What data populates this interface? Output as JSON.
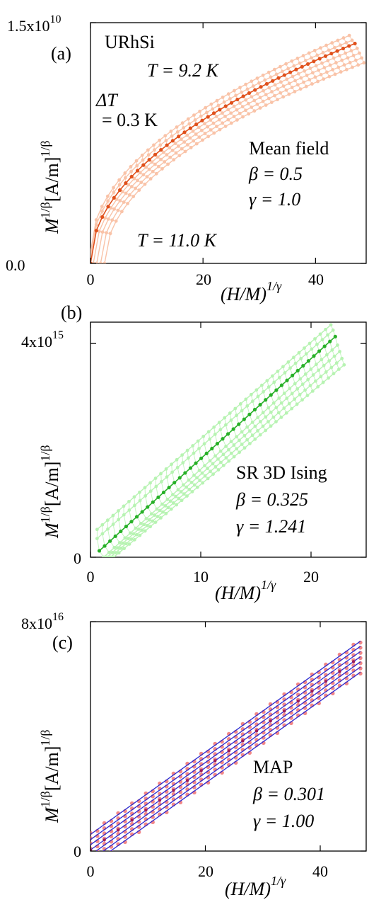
{
  "colors": {
    "panel_a_light": "#f9c3a8",
    "panel_a_dark": "#e0501b",
    "panel_b_light": "#b7f3b2",
    "panel_b_dark": "#27b027",
    "panel_c_line": "#2a2ad0",
    "panel_c_data": "#f07a7a",
    "panel_c_dark": "#9a1a5a"
  },
  "chart_data": [
    {
      "panel": "(a)",
      "type": "line",
      "ylabel": {
        "base": "M",
        "sup": "1/β",
        "unit": "[A/m]",
        "unit_sup": "1/β"
      },
      "xlabel": {
        "base": "(H/M)",
        "sup": "1/γ"
      },
      "xlim": [
        0,
        49
      ],
      "ylim": [
        0,
        15000000000.0
      ],
      "x_ticks": [
        "0",
        "20",
        "40"
      ],
      "x_tick_values": [
        0,
        20,
        40
      ],
      "y_ticks": [
        "0.0",
        "1.5x10"
      ],
      "y_ticks_sup": [
        "",
        "10"
      ],
      "y_tick_values": [
        0,
        15000000000.0
      ],
      "annotations": [
        {
          "text": "URhSi"
        },
        {
          "text": "T = 9.2 K"
        },
        {
          "text": "ΔT"
        },
        {
          "text": "= 0.3 K"
        },
        {
          "text": "Mean field"
        },
        {
          "text": "β = 0.5"
        },
        {
          "text": "γ = 1.0"
        },
        {
          "text": "T = 11.0 K"
        }
      ],
      "model": "sqrt",
      "temperatures_K": [
        9.2,
        9.5,
        9.8,
        10.1,
        10.4,
        10.7,
        11.0
      ],
      "highlight_T_K": 9.8,
      "n_points": 46,
      "series": [
        {
          "T": 9.2,
          "x_range": [
            0,
            46.0
          ],
          "y_range": [
            700000000.0,
            14200000000.0
          ]
        },
        {
          "T": 9.5,
          "x_range": [
            0,
            46.5
          ],
          "y_range": [
            400000000.0,
            13900000000.0
          ]
        },
        {
          "T": 9.8,
          "x_range": [
            0,
            47.0
          ],
          "y_range": [
            0.0,
            13700000000.0
          ]
        },
        {
          "T": 10.1,
          "x_range": [
            0.5,
            47.4
          ],
          "y_range": [
            0.0,
            13400000000.0
          ]
        },
        {
          "T": 10.4,
          "x_range": [
            1.1,
            47.8
          ],
          "y_range": [
            0.0,
            13100000000.0
          ]
        },
        {
          "T": 10.7,
          "x_range": [
            1.8,
            48.2
          ],
          "y_range": [
            0.0,
            12800000000.0
          ]
        },
        {
          "T": 11.0,
          "x_range": [
            2.5,
            48.6
          ],
          "y_range": [
            0.0,
            12500000000.0
          ]
        }
      ]
    },
    {
      "panel": "(b)",
      "type": "line",
      "ylabel": {
        "base": "M",
        "sup": "1/β",
        "unit": "[A/m]",
        "unit_sup": "1/β"
      },
      "xlabel": {
        "base": "(H/M)",
        "sup": "1/γ"
      },
      "xlim": [
        0,
        25
      ],
      "ylim": [
        0,
        4400000000000000.0
      ],
      "x_ticks": [
        "0",
        "10",
        "20"
      ],
      "x_tick_values": [
        0,
        10,
        20
      ],
      "y_ticks": [
        "0",
        "4x10"
      ],
      "y_ticks_sup": [
        "",
        "15"
      ],
      "y_tick_values": [
        0,
        4000000000000000.0
      ],
      "annotations": [
        {
          "text": "SR 3D Ising"
        },
        {
          "text": "β = 0.325"
        },
        {
          "text": "γ = 1.241"
        }
      ],
      "model": "linear",
      "temperatures_K": [
        9.2,
        9.5,
        9.8,
        10.1,
        10.4,
        10.7,
        11.0
      ],
      "highlight_T_K": 9.8,
      "n_points": 45,
      "series": [
        {
          "T": 9.2,
          "x_range": [
            0.6,
            21.8
          ],
          "y_range": [
            520000000000000.0,
            4350000000000000.0
          ]
        },
        {
          "T": 9.5,
          "x_range": [
            0.6,
            22.0
          ],
          "y_range": [
            350000000000000.0,
            4250000000000000.0
          ]
        },
        {
          "T": 9.8,
          "x_range": [
            0.8,
            22.2
          ],
          "y_range": [
            120000000000000.0,
            4130000000000000.0
          ]
        },
        {
          "T": 10.1,
          "x_range": [
            1.2,
            22.4
          ],
          "y_range": [
            0.0,
            3970000000000000.0
          ]
        },
        {
          "T": 10.4,
          "x_range": [
            1.5,
            22.6
          ],
          "y_range": [
            0.0,
            3850000000000000.0
          ]
        },
        {
          "T": 10.7,
          "x_range": [
            1.8,
            22.8
          ],
          "y_range": [
            0.0,
            3720000000000000.0
          ]
        },
        {
          "T": 11.0,
          "x_range": [
            2.1,
            23.0
          ],
          "y_range": [
            0.0,
            3600000000000000.0
          ]
        }
      ]
    },
    {
      "panel": "(c)",
      "type": "line",
      "ylabel": {
        "base": "M",
        "sup": "1/β",
        "unit": "[A/m]",
        "unit_sup": "1/β"
      },
      "xlabel": {
        "base": "(H/M)",
        "sup": "1/γ"
      },
      "xlim": [
        0,
        48
      ],
      "ylim": [
        0,
        8e+16
      ],
      "x_ticks": [
        "0",
        "20",
        "40"
      ],
      "x_tick_values": [
        0,
        20,
        40
      ],
      "y_ticks": [
        "0",
        "8x10"
      ],
      "y_ticks_sup": [
        "",
        "16"
      ],
      "y_tick_values": [
        0,
        8e+16
      ],
      "annotations": [
        {
          "text": "MAP"
        },
        {
          "text": "β = 0.301"
        },
        {
          "text": "γ = 1.00"
        }
      ],
      "model": "linear",
      "temperatures_K": [
        9.2,
        9.5,
        9.8,
        10.1,
        10.4,
        10.7,
        11.0
      ],
      "n_points": 40,
      "series": [
        {
          "T": 9.2,
          "x_range": [
            0,
            47
          ],
          "y_range": [
            5800000000000000.0,
            7.32e+16
          ]
        },
        {
          "T": 9.5,
          "x_range": [
            0,
            47
          ],
          "y_range": [
            4000000000000000.0,
            7.14e+16
          ]
        },
        {
          "T": 9.8,
          "x_range": [
            0,
            47
          ],
          "y_range": [
            2200000000000000.0,
            6.96e+16
          ]
        },
        {
          "T": 10.1,
          "x_range": [
            0,
            47
          ],
          "y_range": [
            400000000000000.0,
            6.78e+16
          ]
        },
        {
          "T": 10.4,
          "x_range": [
            0,
            47
          ],
          "y_range": [
            -1400000000000000.0,
            6.6e+16
          ]
        },
        {
          "T": 10.7,
          "x_range": [
            0,
            47
          ],
          "y_range": [
            -3200000000000000.0,
            6.42e+16
          ]
        },
        {
          "T": 11.0,
          "x_range": [
            0,
            47
          ],
          "y_range": [
            -5000000000000000.0,
            6.24e+16
          ]
        }
      ]
    }
  ]
}
